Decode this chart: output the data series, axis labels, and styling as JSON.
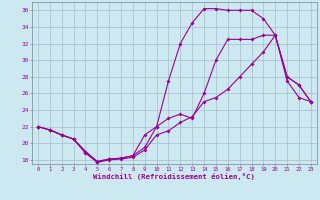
{
  "xlabel": "Windchill (Refroidissement éolien,°C)",
  "background_color": "#cce8f0",
  "line_color": "#990099",
  "grid_color": "#aabbcc",
  "xlim": [
    -0.5,
    23.5
  ],
  "ylim": [
    17.5,
    37
  ],
  "yticks": [
    18,
    20,
    22,
    24,
    26,
    28,
    30,
    32,
    34,
    36
  ],
  "xticks": [
    0,
    1,
    2,
    3,
    4,
    5,
    6,
    7,
    8,
    9,
    10,
    11,
    12,
    13,
    14,
    15,
    16,
    17,
    18,
    19,
    20,
    21,
    22,
    23
  ],
  "s1x": [
    0,
    1,
    2,
    3,
    4,
    5,
    6,
    7,
    8,
    9,
    10,
    11,
    12,
    13,
    14,
    15,
    16,
    17,
    18,
    19,
    20,
    21,
    22,
    23
  ],
  "s1y": [
    22,
    21.6,
    21.0,
    20.5,
    18.8,
    17.7,
    18.0,
    18.1,
    18.3,
    19.2,
    21.0,
    21.5,
    22.5,
    23.2,
    25.0,
    25.5,
    26.5,
    28.0,
    29.5,
    31.0,
    33.0,
    28.0,
    27.0,
    25.0
  ],
  "s2x": [
    0,
    1,
    2,
    3,
    4,
    5,
    6,
    7,
    8,
    9,
    10,
    11,
    12,
    13,
    14,
    15,
    16,
    17,
    18,
    19,
    20,
    21,
    22,
    23
  ],
  "s2y": [
    22,
    21.6,
    21.0,
    20.5,
    19.0,
    17.8,
    18.1,
    18.2,
    18.5,
    19.5,
    22.0,
    27.5,
    32.0,
    34.5,
    36.2,
    36.2,
    36.0,
    36.0,
    36.0,
    35.0,
    33.0,
    27.5,
    25.5,
    25.0
  ],
  "s3x": [
    0,
    1,
    2,
    3,
    4,
    5,
    6,
    7,
    8,
    9,
    10,
    11,
    12,
    13,
    14,
    15,
    16,
    17,
    18,
    19,
    20,
    21,
    22,
    23
  ],
  "s3y": [
    22,
    21.6,
    21.0,
    20.5,
    19.0,
    17.8,
    18.1,
    18.2,
    18.5,
    21.0,
    22.0,
    23.0,
    23.5,
    23.0,
    26.0,
    30.0,
    32.5,
    32.5,
    32.5,
    33.0,
    33.0,
    28.0,
    27.0,
    25.0
  ]
}
